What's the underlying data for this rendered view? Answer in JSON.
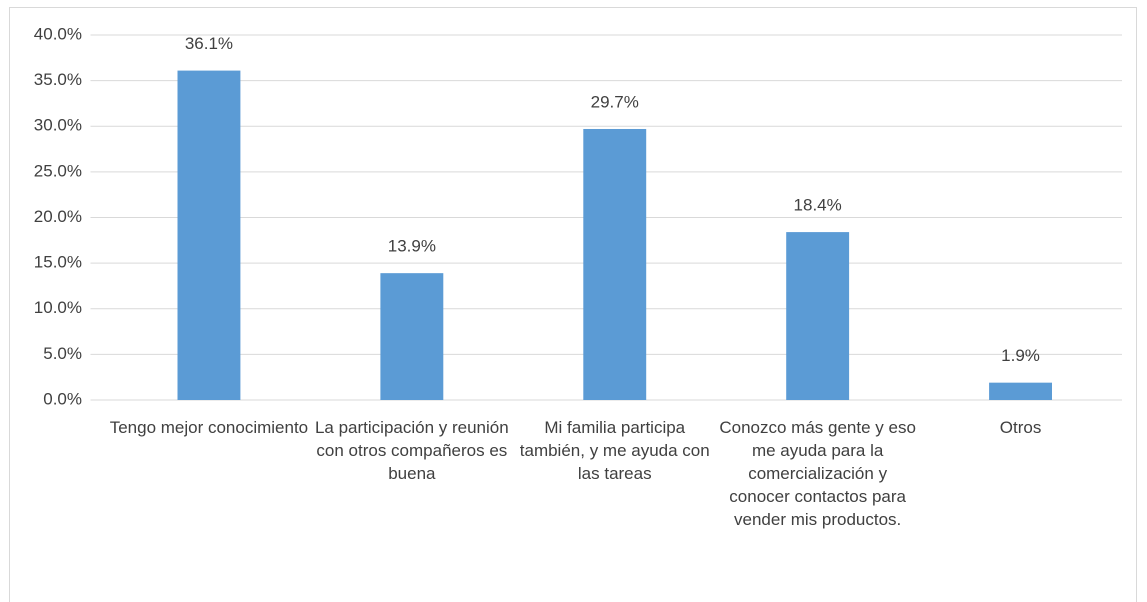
{
  "chart_data": {
    "type": "bar",
    "categories": [
      "Tengo mejor conocimiento",
      "La participación y reunión con otros compañeros es buena",
      "Mi familia participa también, y me ayuda con las tareas",
      "Conozco más gente y eso me ayuda para la comercialización y conocer contactos para vender mis productos.",
      "Otros"
    ],
    "values": [
      36.1,
      13.9,
      29.7,
      18.4,
      1.9
    ],
    "value_labels": [
      "36.1%",
      "13.9%",
      "29.7%",
      "18.4%",
      "1.9%"
    ],
    "color": "#5b9bd5",
    "ylim": [
      0,
      40
    ],
    "yticks": [
      {
        "value": 0,
        "label": "0.0%"
      },
      {
        "value": 5,
        "label": "5.0%"
      },
      {
        "value": 10,
        "label": "10.0%"
      },
      {
        "value": 15,
        "label": "15.0%"
      },
      {
        "value": 20,
        "label": "20.0%"
      },
      {
        "value": 25,
        "label": "25.0%"
      },
      {
        "value": 30,
        "label": "30.0%"
      },
      {
        "value": 35,
        "label": "35.0%"
      },
      {
        "value": 40,
        "label": "40.0%"
      }
    ],
    "grid": true
  }
}
